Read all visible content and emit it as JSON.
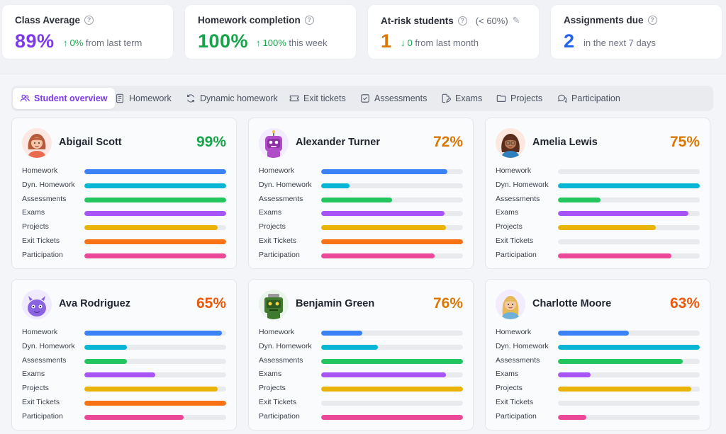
{
  "stats": [
    {
      "title": "Class Average",
      "note": "",
      "value": "89%",
      "value_color": "#7c3aed",
      "trend_arrow": "↑",
      "trend_value": "0%",
      "trend_text": "from last term",
      "trend_color": "#16a34a",
      "has_pencil": false
    },
    {
      "title": "Homework completion",
      "note": "",
      "value": "100%",
      "value_color": "#16a34a",
      "trend_arrow": "↑",
      "trend_value": "100%",
      "trend_text": "this week",
      "trend_color": "#16a34a",
      "has_pencil": false
    },
    {
      "title": "At-risk students",
      "note": "(< 60%)",
      "value": "1",
      "value_color": "#d97706",
      "trend_arrow": "↓",
      "trend_value": "0",
      "trend_text": "from last month",
      "trend_color": "#16a34a",
      "has_pencil": true
    },
    {
      "title": "Assignments due",
      "note": "",
      "value": "2",
      "value_color": "#2563eb",
      "trend_arrow": "",
      "trend_value": "",
      "trend_text": "in the next 7 days",
      "trend_color": "#6b7180",
      "has_pencil": false
    }
  ],
  "tabs": [
    {
      "label": "Student overview",
      "icon": "users-icon",
      "active": true
    },
    {
      "label": "Homework",
      "icon": "document-icon",
      "active": false
    },
    {
      "label": "Dynamic homework",
      "icon": "refresh-icon",
      "active": false
    },
    {
      "label": "Exit tickets",
      "icon": "ticket-icon",
      "active": false
    },
    {
      "label": "Assessments",
      "icon": "checkbox-icon",
      "active": false
    },
    {
      "label": "Exams",
      "icon": "file-edit-icon",
      "active": false
    },
    {
      "label": "Projects",
      "icon": "folder-icon",
      "active": false
    },
    {
      "label": "Participation",
      "icon": "chat-icon",
      "active": false
    }
  ],
  "metric_labels": [
    "Homework",
    "Dyn. Homework",
    "Assessments",
    "Exams",
    "Projects",
    "Exit Tickets",
    "Participation"
  ],
  "metric_colors": [
    "#3b82f6",
    "#06b6d4",
    "#22c55e",
    "#a855f7",
    "#eab308",
    "#f97316",
    "#ec4899"
  ],
  "students": [
    {
      "name": "Abigail Scott",
      "score": "99%",
      "score_color": "#16a34a",
      "avatar": "girl-avatar-icon",
      "metrics": [
        1.0,
        1.0,
        1.0,
        1.0,
        0.94,
        1.0,
        1.0
      ]
    },
    {
      "name": "Alexander Turner",
      "score": "72%",
      "score_color": "#d97706",
      "avatar": "robot-avatar-icon",
      "metrics": [
        0.89,
        0.2,
        0.5,
        0.87,
        0.88,
        1.0,
        0.8
      ]
    },
    {
      "name": "Amelia Lewis",
      "score": "75%",
      "score_color": "#d97706",
      "avatar": "woman-avatar-icon",
      "metrics": [
        0.0,
        1.0,
        0.3,
        0.92,
        0.69,
        0.0,
        0.8
      ]
    },
    {
      "name": "Ava Rodriguez",
      "score": "65%",
      "score_color": "#ea580c",
      "avatar": "monster-avatar-icon",
      "metrics": [
        0.97,
        0.3,
        0.3,
        0.5,
        0.94,
        1.0,
        0.7
      ]
    },
    {
      "name": "Benjamin Green",
      "score": "76%",
      "score_color": "#d97706",
      "avatar": "robot-green-avatar-icon",
      "metrics": [
        0.29,
        0.4,
        1.0,
        0.88,
        1.0,
        0.0,
        1.0
      ]
    },
    {
      "name": "Charlotte Moore",
      "score": "63%",
      "score_color": "#ea580c",
      "avatar": "girl-blonde-avatar-icon",
      "metrics": [
        0.5,
        1.0,
        0.88,
        0.23,
        0.94,
        0.0,
        0.2
      ]
    }
  ]
}
